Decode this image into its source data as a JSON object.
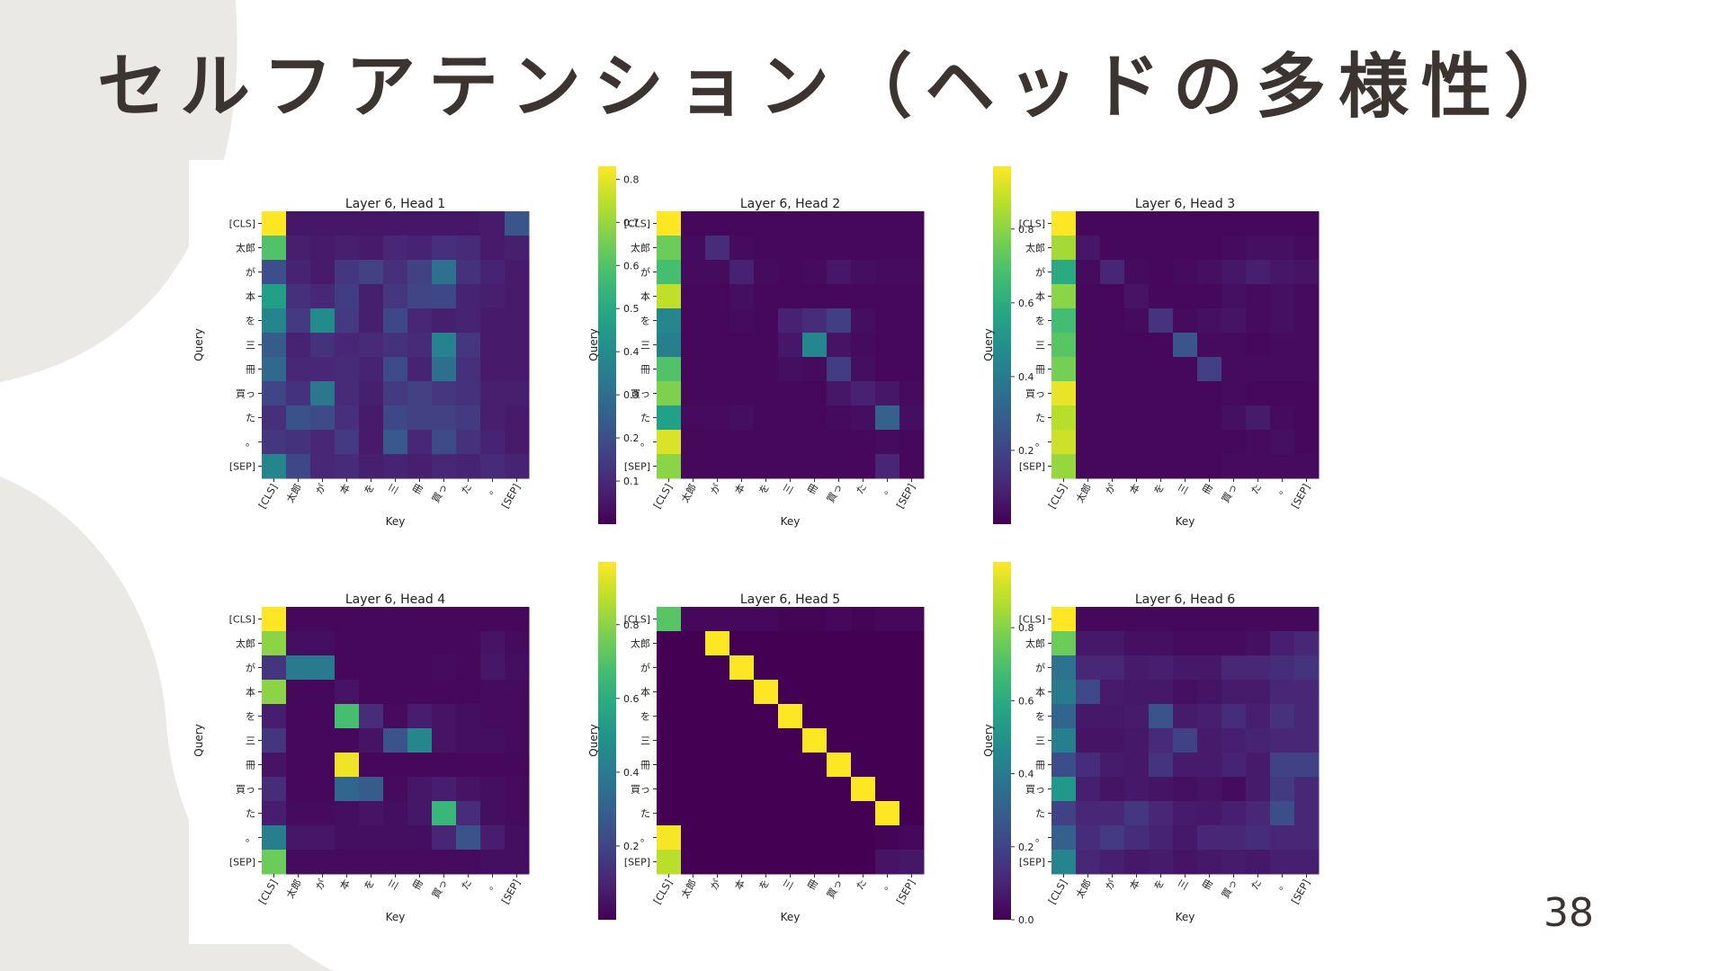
{
  "slide": {
    "title": "セルフアテンション（ヘッドの多様性）",
    "page_number": "38"
  },
  "chart_data": [
    {
      "type": "heatmap",
      "title": "Layer 6, Head 1",
      "xlabel": "Key",
      "ylabel": "Query",
      "rows": [
        "[CLS]",
        "太郎",
        "が",
        "本",
        "を",
        "三",
        "冊",
        "買っ",
        "た",
        "。",
        "[SEP]"
      ],
      "cols": [
        "[CLS]",
        "太郎",
        "が",
        "本",
        "を",
        "三",
        "冊",
        "買っ",
        "た",
        "。",
        "[SEP]"
      ],
      "colorbar": {
        "ticks": [
          0.1,
          0.2,
          0.3,
          0.4,
          0.5,
          0.6,
          0.7,
          0.8
        ],
        "vmin": 0.0,
        "vmax": 0.83
      },
      "values": [
        [
          0.83,
          0.05,
          0.05,
          0.05,
          0.05,
          0.05,
          0.05,
          0.05,
          0.05,
          0.06,
          0.22
        ],
        [
          0.6,
          0.07,
          0.06,
          0.07,
          0.06,
          0.09,
          0.08,
          0.11,
          0.1,
          0.06,
          0.07
        ],
        [
          0.2,
          0.08,
          0.06,
          0.13,
          0.16,
          0.11,
          0.16,
          0.31,
          0.12,
          0.08,
          0.06
        ],
        [
          0.47,
          0.11,
          0.09,
          0.15,
          0.07,
          0.13,
          0.17,
          0.18,
          0.08,
          0.07,
          0.06
        ],
        [
          0.38,
          0.14,
          0.4,
          0.14,
          0.07,
          0.18,
          0.09,
          0.07,
          0.08,
          0.06,
          0.06
        ],
        [
          0.24,
          0.08,
          0.12,
          0.09,
          0.1,
          0.12,
          0.1,
          0.37,
          0.13,
          0.06,
          0.06
        ],
        [
          0.28,
          0.09,
          0.09,
          0.1,
          0.08,
          0.19,
          0.08,
          0.3,
          0.11,
          0.06,
          0.06
        ],
        [
          0.17,
          0.12,
          0.33,
          0.1,
          0.07,
          0.14,
          0.16,
          0.13,
          0.12,
          0.07,
          0.07
        ],
        [
          0.11,
          0.21,
          0.19,
          0.11,
          0.06,
          0.18,
          0.16,
          0.16,
          0.14,
          0.07,
          0.06
        ],
        [
          0.13,
          0.12,
          0.09,
          0.14,
          0.06,
          0.23,
          0.09,
          0.19,
          0.12,
          0.08,
          0.06
        ],
        [
          0.38,
          0.18,
          0.09,
          0.1,
          0.07,
          0.08,
          0.07,
          0.09,
          0.08,
          0.1,
          0.08
        ]
      ]
    },
    {
      "type": "heatmap",
      "title": "Layer 6, Head 2",
      "xlabel": "Key",
      "ylabel": "Query",
      "rows": [
        "[CLS]",
        "太郎",
        "が",
        "本",
        "を",
        "三",
        "冊",
        "買っ",
        "た",
        "。",
        "[SEP]"
      ],
      "cols": [
        "[CLS]",
        "太郎",
        "が",
        "本",
        "を",
        "三",
        "冊",
        "買っ",
        "た",
        "。",
        "[SEP]"
      ],
      "colorbar": {
        "ticks": [
          0.2,
          0.4,
          0.6,
          0.8
        ],
        "vmin": 0.0,
        "vmax": 0.97
      },
      "values": [
        [
          0.97,
          0.02,
          0.02,
          0.02,
          0.02,
          0.02,
          0.02,
          0.02,
          0.02,
          0.02,
          0.02
        ],
        [
          0.75,
          0.03,
          0.12,
          0.03,
          0.02,
          0.02,
          0.02,
          0.02,
          0.02,
          0.02,
          0.02
        ],
        [
          0.68,
          0.03,
          0.03,
          0.09,
          0.03,
          0.02,
          0.03,
          0.06,
          0.04,
          0.03,
          0.03
        ],
        [
          0.88,
          0.02,
          0.02,
          0.04,
          0.02,
          0.02,
          0.02,
          0.02,
          0.02,
          0.02,
          0.02
        ],
        [
          0.45,
          0.02,
          0.02,
          0.03,
          0.02,
          0.09,
          0.12,
          0.18,
          0.04,
          0.02,
          0.02
        ],
        [
          0.42,
          0.02,
          0.02,
          0.02,
          0.02,
          0.06,
          0.45,
          0.05,
          0.03,
          0.02,
          0.02
        ],
        [
          0.7,
          0.02,
          0.02,
          0.02,
          0.02,
          0.04,
          0.03,
          0.17,
          0.04,
          0.02,
          0.02
        ],
        [
          0.78,
          0.02,
          0.02,
          0.02,
          0.02,
          0.02,
          0.02,
          0.06,
          0.09,
          0.06,
          0.03
        ],
        [
          0.55,
          0.03,
          0.03,
          0.04,
          0.02,
          0.02,
          0.02,
          0.03,
          0.04,
          0.3,
          0.04
        ],
        [
          0.92,
          0.02,
          0.02,
          0.02,
          0.02,
          0.02,
          0.02,
          0.02,
          0.02,
          0.03,
          0.02
        ],
        [
          0.8,
          0.02,
          0.02,
          0.02,
          0.02,
          0.02,
          0.02,
          0.02,
          0.02,
          0.1,
          0.02
        ]
      ]
    },
    {
      "type": "heatmap",
      "title": "Layer 6, Head 3",
      "xlabel": "Key",
      "ylabel": "Query",
      "rows": [
        "[CLS]",
        "太郎",
        "が",
        "本",
        "を",
        "三",
        "冊",
        "買っ",
        "た",
        "。",
        "[SEP]"
      ],
      "cols": [
        "[CLS]",
        "太郎",
        "が",
        "本",
        "を",
        "三",
        "冊",
        "買っ",
        "た",
        "。",
        "[SEP]"
      ],
      "colorbar": {
        "ticks": [
          0.2,
          0.4,
          0.6,
          0.8
        ],
        "vmin": 0.0,
        "vmax": 0.95
      },
      "values": [
        [
          0.95,
          0.02,
          0.02,
          0.02,
          0.02,
          0.02,
          0.02,
          0.02,
          0.02,
          0.02,
          0.02
        ],
        [
          0.82,
          0.06,
          0.02,
          0.02,
          0.02,
          0.02,
          0.02,
          0.03,
          0.04,
          0.04,
          0.03
        ],
        [
          0.58,
          0.03,
          0.1,
          0.03,
          0.02,
          0.03,
          0.04,
          0.06,
          0.08,
          0.06,
          0.05
        ],
        [
          0.78,
          0.02,
          0.02,
          0.05,
          0.02,
          0.02,
          0.02,
          0.04,
          0.03,
          0.04,
          0.03
        ],
        [
          0.66,
          0.02,
          0.02,
          0.03,
          0.14,
          0.03,
          0.04,
          0.05,
          0.03,
          0.04,
          0.03
        ],
        [
          0.7,
          0.02,
          0.02,
          0.02,
          0.02,
          0.25,
          0.03,
          0.03,
          0.02,
          0.03,
          0.03
        ],
        [
          0.75,
          0.02,
          0.02,
          0.02,
          0.02,
          0.02,
          0.18,
          0.03,
          0.03,
          0.03,
          0.03
        ],
        [
          0.92,
          0.02,
          0.02,
          0.02,
          0.02,
          0.02,
          0.02,
          0.03,
          0.02,
          0.02,
          0.02
        ],
        [
          0.85,
          0.02,
          0.02,
          0.02,
          0.02,
          0.02,
          0.02,
          0.04,
          0.07,
          0.03,
          0.02
        ],
        [
          0.88,
          0.02,
          0.02,
          0.02,
          0.02,
          0.02,
          0.02,
          0.02,
          0.03,
          0.04,
          0.02
        ],
        [
          0.8,
          0.02,
          0.02,
          0.02,
          0.02,
          0.02,
          0.02,
          0.03,
          0.03,
          0.03,
          0.03
        ]
      ]
    },
    {
      "type": "heatmap",
      "title": "Layer 6, Head 4",
      "xlabel": "Key",
      "ylabel": "Query",
      "rows": [
        "[CLS]",
        "太郎",
        "が",
        "本",
        "を",
        "三",
        "冊",
        "買っ",
        "た",
        "。",
        "[SEP]"
      ],
      "cols": [
        "[CLS]",
        "太郎",
        "が",
        "本",
        "を",
        "三",
        "冊",
        "買っ",
        "た",
        "。",
        "[SEP]"
      ],
      "colorbar": {
        "ticks": [
          0.2,
          0.4,
          0.6,
          0.8
        ],
        "vmin": 0.0,
        "vmax": 0.97
      },
      "values": [
        [
          0.97,
          0.02,
          0.02,
          0.02,
          0.02,
          0.02,
          0.02,
          0.02,
          0.02,
          0.02,
          0.02
        ],
        [
          0.8,
          0.04,
          0.04,
          0.02,
          0.02,
          0.02,
          0.02,
          0.02,
          0.02,
          0.05,
          0.03
        ],
        [
          0.15,
          0.4,
          0.4,
          0.02,
          0.02,
          0.02,
          0.02,
          0.03,
          0.02,
          0.06,
          0.04
        ],
        [
          0.8,
          0.02,
          0.02,
          0.05,
          0.02,
          0.02,
          0.02,
          0.02,
          0.02,
          0.03,
          0.03
        ],
        [
          0.08,
          0.02,
          0.02,
          0.68,
          0.12,
          0.03,
          0.08,
          0.05,
          0.04,
          0.03,
          0.03
        ],
        [
          0.15,
          0.02,
          0.02,
          0.02,
          0.05,
          0.25,
          0.45,
          0.05,
          0.04,
          0.04,
          0.03
        ],
        [
          0.05,
          0.02,
          0.02,
          0.95,
          0.02,
          0.02,
          0.02,
          0.02,
          0.02,
          0.02,
          0.02
        ],
        [
          0.12,
          0.02,
          0.02,
          0.32,
          0.28,
          0.03,
          0.06,
          0.08,
          0.05,
          0.04,
          0.03
        ],
        [
          0.08,
          0.03,
          0.03,
          0.04,
          0.05,
          0.04,
          0.06,
          0.65,
          0.12,
          0.04,
          0.03
        ],
        [
          0.42,
          0.06,
          0.06,
          0.04,
          0.04,
          0.04,
          0.04,
          0.1,
          0.25,
          0.08,
          0.04
        ],
        [
          0.75,
          0.03,
          0.03,
          0.03,
          0.03,
          0.03,
          0.03,
          0.03,
          0.03,
          0.04,
          0.04
        ]
      ]
    },
    {
      "type": "heatmap",
      "title": "Layer 6, Head 5",
      "xlabel": "Key",
      "ylabel": "Query",
      "rows": [
        "[CLS]",
        "太郎",
        "が",
        "本",
        "を",
        "三",
        "冊",
        "買っ",
        "た",
        "。",
        "[SEP]"
      ],
      "cols": [
        "[CLS]",
        "太郎",
        "が",
        "本",
        "を",
        "三",
        "冊",
        "買っ",
        "た",
        "。",
        "[SEP]"
      ],
      "colorbar": {
        "ticks": [
          0.0,
          0.2,
          0.4,
          0.6,
          0.8
        ],
        "vmin": 0.0,
        "vmax": 0.98
      },
      "values": [
        [
          0.72,
          0.02,
          0.02,
          0.02,
          0.02,
          0.01,
          0.01,
          0.02,
          0.01,
          0.02,
          0.02
        ],
        [
          0.0,
          0.0,
          0.98,
          0.0,
          0.0,
          0.0,
          0.0,
          0.0,
          0.0,
          0.0,
          0.0
        ],
        [
          0.0,
          0.0,
          0.0,
          0.98,
          0.0,
          0.0,
          0.0,
          0.0,
          0.0,
          0.0,
          0.0
        ],
        [
          0.0,
          0.0,
          0.0,
          0.0,
          0.98,
          0.0,
          0.0,
          0.0,
          0.0,
          0.0,
          0.0
        ],
        [
          0.0,
          0.0,
          0.0,
          0.0,
          0.0,
          0.98,
          0.0,
          0.0,
          0.0,
          0.0,
          0.0
        ],
        [
          0.0,
          0.0,
          0.0,
          0.0,
          0.0,
          0.0,
          0.98,
          0.0,
          0.0,
          0.0,
          0.0
        ],
        [
          0.0,
          0.0,
          0.0,
          0.0,
          0.0,
          0.0,
          0.0,
          0.98,
          0.0,
          0.0,
          0.0
        ],
        [
          0.0,
          0.0,
          0.0,
          0.0,
          0.0,
          0.0,
          0.0,
          0.0,
          0.98,
          0.0,
          0.0
        ],
        [
          0.0,
          0.0,
          0.0,
          0.0,
          0.0,
          0.0,
          0.0,
          0.0,
          0.0,
          0.98,
          0.0
        ],
        [
          0.97,
          0.0,
          0.0,
          0.0,
          0.0,
          0.0,
          0.0,
          0.0,
          0.0,
          0.01,
          0.02
        ],
        [
          0.88,
          0.0,
          0.0,
          0.0,
          0.0,
          0.0,
          0.0,
          0.0,
          0.0,
          0.05,
          0.06
        ]
      ]
    },
    {
      "type": "heatmap",
      "title": "Layer 6, Head 6",
      "xlabel": "Key",
      "ylabel": "Query",
      "rows": [
        "[CLS]",
        "太郎",
        "が",
        "本",
        "を",
        "三",
        "冊",
        "買っ",
        "た",
        "。",
        "[SEP]"
      ],
      "cols": [
        "[CLS]",
        "太郎",
        "が",
        "本",
        "を",
        "三",
        "冊",
        "買っ",
        "た",
        "。",
        "[SEP]"
      ],
      "colorbar": {
        "ticks": [
          0.2,
          0.4,
          0.6,
          0.8
        ],
        "vmin": 0.0,
        "vmax": 0.93
      },
      "values": [
        [
          0.93,
          0.02,
          0.02,
          0.02,
          0.02,
          0.02,
          0.02,
          0.02,
          0.02,
          0.02,
          0.02
        ],
        [
          0.72,
          0.06,
          0.06,
          0.04,
          0.04,
          0.03,
          0.03,
          0.03,
          0.04,
          0.08,
          0.1
        ],
        [
          0.35,
          0.1,
          0.1,
          0.07,
          0.08,
          0.06,
          0.06,
          0.1,
          0.1,
          0.12,
          0.14
        ],
        [
          0.38,
          0.2,
          0.07,
          0.06,
          0.06,
          0.04,
          0.05,
          0.07,
          0.07,
          0.1,
          0.1
        ],
        [
          0.3,
          0.06,
          0.06,
          0.07,
          0.24,
          0.07,
          0.08,
          0.12,
          0.08,
          0.13,
          0.1
        ],
        [
          0.4,
          0.05,
          0.05,
          0.06,
          0.11,
          0.18,
          0.07,
          0.08,
          0.09,
          0.1,
          0.1
        ],
        [
          0.22,
          0.12,
          0.07,
          0.06,
          0.14,
          0.07,
          0.07,
          0.09,
          0.07,
          0.18,
          0.18
        ],
        [
          0.5,
          0.08,
          0.05,
          0.06,
          0.05,
          0.04,
          0.05,
          0.03,
          0.07,
          0.16,
          0.1
        ],
        [
          0.18,
          0.1,
          0.1,
          0.15,
          0.1,
          0.07,
          0.06,
          0.08,
          0.1,
          0.22,
          0.1
        ],
        [
          0.28,
          0.12,
          0.16,
          0.12,
          0.09,
          0.06,
          0.1,
          0.1,
          0.12,
          0.1,
          0.1
        ],
        [
          0.42,
          0.1,
          0.08,
          0.06,
          0.07,
          0.05,
          0.06,
          0.07,
          0.06,
          0.08,
          0.08
        ]
      ]
    }
  ]
}
